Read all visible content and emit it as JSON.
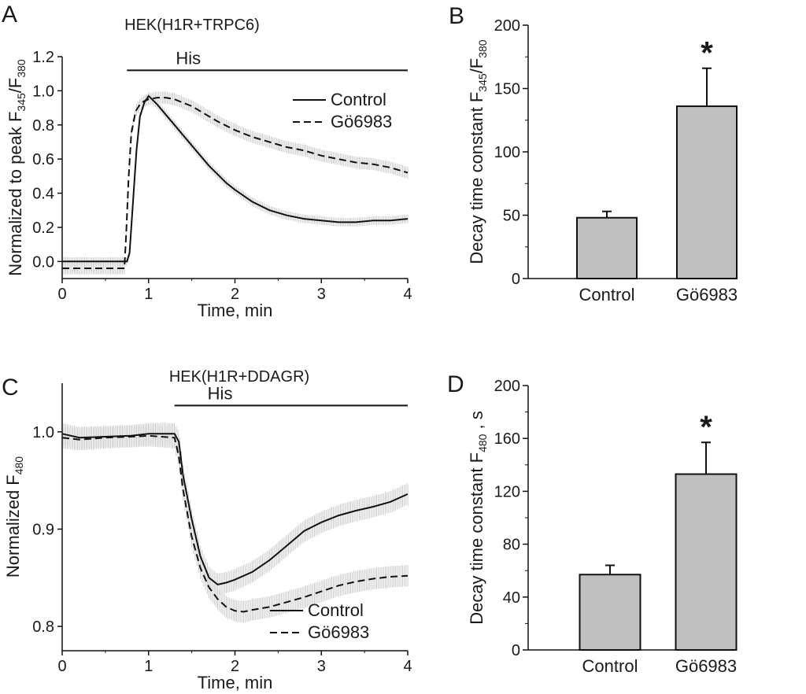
{
  "chart_data": [
    {
      "panel": "A",
      "type": "line",
      "title": "HEK(H1R+TRPC6)",
      "xlabel": "Time, min",
      "ylabel": "Normalized to peak F",
      "ylabel_sub1": "345",
      "ylabel_mid": "/F",
      "ylabel_sub2": "380",
      "xlim": [
        0,
        4
      ],
      "ylim": [
        -0.1,
        1.2
      ],
      "xticks": [
        "0",
        "1",
        "2",
        "3",
        "4"
      ],
      "xtick_values": [
        0,
        1,
        2,
        3,
        4
      ],
      "yticks": [
        "0.0",
        "0.2",
        "0.4",
        "0.6",
        "0.8",
        "1.0",
        "1.2"
      ],
      "ytick_values": [
        0.0,
        0.2,
        0.4,
        0.6,
        0.8,
        1.0,
        1.2
      ],
      "stimulus": {
        "label": "His",
        "start": 0.75,
        "end": 4.0,
        "level": 1.12
      },
      "legend": [
        "Control",
        "Gö6983"
      ],
      "series": [
        {
          "name": "Control",
          "style": "solid",
          "x": [
            0,
            0.75,
            0.78,
            0.82,
            0.86,
            0.9,
            0.95,
            1.0,
            1.1,
            1.2,
            1.3,
            1.4,
            1.5,
            1.6,
            1.7,
            1.8,
            1.9,
            2.0,
            2.2,
            2.4,
            2.6,
            2.8,
            3.0,
            3.2,
            3.4,
            3.6,
            3.8,
            4.0
          ],
          "values": [
            0.0,
            0.0,
            0.05,
            0.35,
            0.65,
            0.85,
            0.93,
            0.97,
            0.92,
            0.86,
            0.8,
            0.74,
            0.68,
            0.62,
            0.56,
            0.51,
            0.46,
            0.42,
            0.35,
            0.3,
            0.27,
            0.25,
            0.24,
            0.23,
            0.23,
            0.24,
            0.24,
            0.25
          ],
          "error": 0.025
        },
        {
          "name": "Gö6983",
          "style": "dashed",
          "x": [
            0,
            0.72,
            0.74,
            0.77,
            0.8,
            0.85,
            0.9,
            0.95,
            1.0,
            1.1,
            1.2,
            1.3,
            1.4,
            1.5,
            1.6,
            1.8,
            2.0,
            2.2,
            2.4,
            2.6,
            2.8,
            3.0,
            3.2,
            3.4,
            3.6,
            3.8,
            4.0
          ],
          "values": [
            -0.04,
            -0.04,
            0.15,
            0.5,
            0.75,
            0.88,
            0.92,
            0.94,
            0.95,
            0.96,
            0.96,
            0.95,
            0.93,
            0.91,
            0.88,
            0.82,
            0.77,
            0.73,
            0.7,
            0.67,
            0.65,
            0.62,
            0.6,
            0.58,
            0.57,
            0.55,
            0.52
          ],
          "error": 0.035
        }
      ]
    },
    {
      "panel": "B",
      "type": "bar",
      "ylabel": "Decay time constant F",
      "ylabel_sub1": "345",
      "ylabel_mid": "/F",
      "ylabel_sub2": "380",
      "categories": [
        "Control",
        "Gö6983"
      ],
      "values": [
        48,
        136
      ],
      "errors": [
        5,
        30
      ],
      "ylim": [
        0,
        200
      ],
      "yticks": [
        "0",
        "50",
        "100",
        "150",
        "200"
      ],
      "ytick_values": [
        0,
        50,
        100,
        150,
        200
      ],
      "significance": [
        "",
        "*"
      ],
      "bar_color": "#c0c0c0"
    },
    {
      "panel": "C",
      "type": "line",
      "title": "HEK(H1R+DDAGR)",
      "xlabel": "Time, min",
      "ylabel": "Normalized F",
      "ylabel_sub1": "480",
      "xlim": [
        0,
        4
      ],
      "ylim": [
        0.775,
        1.05
      ],
      "xticks": [
        "0",
        "1",
        "2",
        "3",
        "4"
      ],
      "xtick_values": [
        0,
        1,
        2,
        3,
        4
      ],
      "yticks": [
        "0.8",
        "0.9",
        "1.0"
      ],
      "ytick_values": [
        0.8,
        0.9,
        1.0
      ],
      "stimulus": {
        "label": "His",
        "start": 1.3,
        "end": 4.0,
        "level": 1.027
      },
      "legend": [
        "Control",
        "Gö6983"
      ],
      "series": [
        {
          "name": "Control",
          "style": "solid",
          "x": [
            0,
            0.2,
            0.5,
            0.8,
            1.0,
            1.3,
            1.35,
            1.4,
            1.5,
            1.6,
            1.7,
            1.8,
            1.9,
            2.0,
            2.2,
            2.4,
            2.6,
            2.8,
            3.0,
            3.2,
            3.4,
            3.6,
            3.8,
            4.0
          ],
          "values": [
            0.998,
            0.994,
            0.995,
            0.996,
            0.998,
            0.998,
            0.99,
            0.955,
            0.91,
            0.872,
            0.85,
            0.843,
            0.845,
            0.848,
            0.856,
            0.868,
            0.883,
            0.898,
            0.907,
            0.914,
            0.919,
            0.923,
            0.928,
            0.936
          ],
          "error": 0.011
        },
        {
          "name": "Gö6983",
          "style": "dashed",
          "x": [
            0,
            0.2,
            0.5,
            0.8,
            1.0,
            1.3,
            1.35,
            1.4,
            1.5,
            1.6,
            1.7,
            1.8,
            1.9,
            2.0,
            2.1,
            2.2,
            2.4,
            2.6,
            2.8,
            3.0,
            3.2,
            3.4,
            3.6,
            3.8,
            4.0
          ],
          "values": [
            0.994,
            0.992,
            0.994,
            0.995,
            0.996,
            0.994,
            0.975,
            0.94,
            0.892,
            0.86,
            0.84,
            0.828,
            0.82,
            0.816,
            0.815,
            0.817,
            0.82,
            0.825,
            0.83,
            0.836,
            0.842,
            0.846,
            0.849,
            0.851,
            0.852
          ],
          "error": 0.011
        }
      ]
    },
    {
      "panel": "D",
      "type": "bar",
      "ylabel": "Decay time constant F",
      "ylabel_sub1": "480",
      "ylabel_mid": " , s",
      "categories": [
        "Control",
        "Gö6983"
      ],
      "values": [
        57,
        133
      ],
      "errors": [
        7,
        24
      ],
      "ylim": [
        0,
        200
      ],
      "yticks": [
        "0",
        "40",
        "80",
        "120",
        "160",
        "200"
      ],
      "ytick_values": [
        0,
        40,
        80,
        120,
        160,
        200
      ],
      "significance": [
        "",
        "*"
      ],
      "bar_color": "#c0c0c0"
    }
  ]
}
